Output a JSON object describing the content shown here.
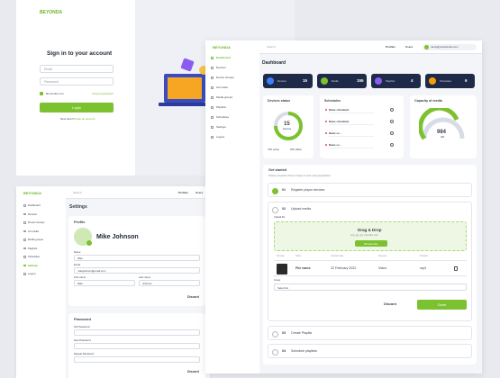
{
  "signin": {
    "logo": "BEYONDA",
    "title": "Sign in to your account",
    "email": "Email",
    "password": "Password",
    "remember": "Remember me",
    "forgot": "Forgot password?",
    "login": "Login",
    "new_here": "New here?",
    "create": "Create an account"
  },
  "dashboard": {
    "logo": "BEYONDA",
    "nav": [
      "Dashboard",
      "Devices",
      "Device Groups",
      "Ad media",
      "Media groups",
      "Playlists",
      "Schedules",
      "Settings",
      "Logout"
    ],
    "search": "Search",
    "top_links": [
      "Profiles",
      "Users"
    ],
    "user": "name@yourdomain.com",
    "title": "Dashboard",
    "stats": [
      {
        "label": "Devices",
        "value": 15
      },
      {
        "label": "Media",
        "value": 155
      },
      {
        "label": "Playlists",
        "value": 4
      },
      {
        "label": "Schedules",
        "value": 6
      }
    ],
    "devices_status": {
      "title": "Devices status",
      "value": 15,
      "label": "Devices",
      "online": "75% online",
      "offline": "25% offline"
    },
    "schedules": {
      "title": "Schedules",
      "items": [
        "Name scheduled",
        "Name scheduled",
        "Name sc...",
        "Name sc..."
      ]
    },
    "capacity": {
      "title": "Capacity of media",
      "value": 984,
      "unit": "GB"
    },
    "get_started": {
      "title": "Get started",
      "subtitle": "Please complete these 4 steps to start using application",
      "steps": [
        {
          "num": "01",
          "label": "Register player devices"
        },
        {
          "num": "02",
          "label": "Upload media"
        },
        {
          "num": "03",
          "label": "Create Playlist"
        },
        {
          "num": "04",
          "label": "Schedule playlists"
        }
      ],
      "upload_label": "Upload file",
      "drop_title": "Drag & Drop",
      "drop_hint": "png, jpg, gif, mp4 files only",
      "browse": "Browse files",
      "columns": [
        "Preview",
        "Name",
        "Creation date",
        "File type",
        "Duration"
      ],
      "row": [
        "File name",
        "22 February 2022",
        "Video",
        "mp4"
      ],
      "group_label": "Group",
      "group_select": "Select list",
      "discard": "Discard",
      "done": "Done"
    }
  },
  "settings": {
    "logo": "BEYONDA",
    "search": "Search",
    "top_links": [
      "Profiles",
      "Users"
    ],
    "title": "Settings",
    "profile": "Profile",
    "name": "Mike Johnson",
    "fields": [
      {
        "label": "Name",
        "value": "Mike"
      },
      {
        "label": "Email",
        "value": "mikejohnson@email.com"
      },
      {
        "label": "First name",
        "value": "Mike"
      },
      {
        "label": "Last name",
        "value": "Johnson"
      }
    ],
    "discard": "Discard",
    "password": "Password",
    "password_fields": [
      "Old Password",
      "New Password",
      "Repeat Password"
    ]
  }
}
